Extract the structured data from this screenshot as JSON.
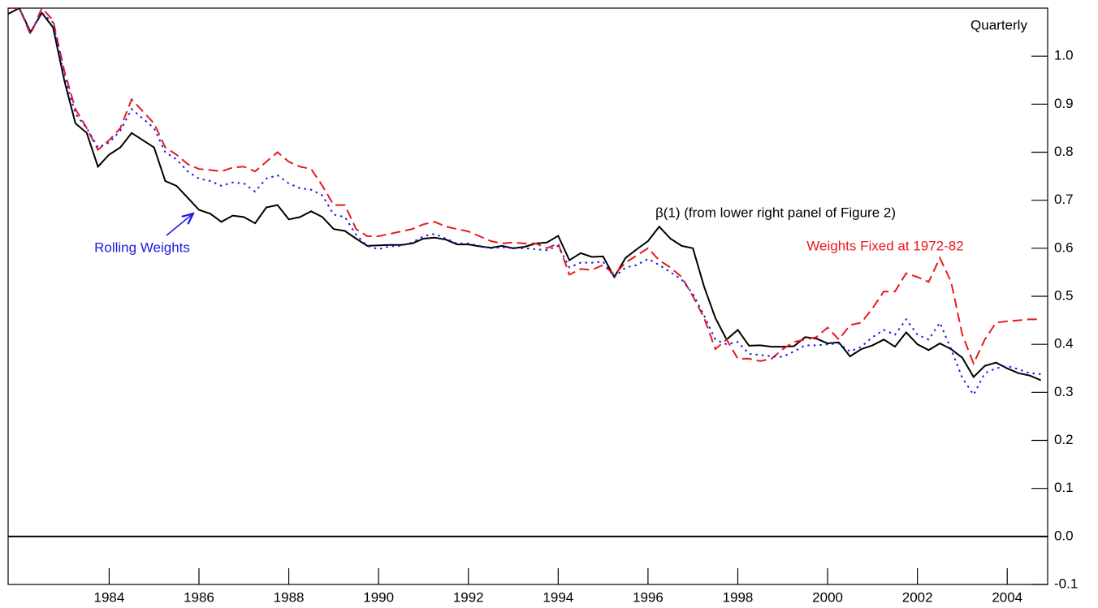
{
  "chart_data": {
    "type": "line",
    "annotations": {
      "frequency": "Quarterly"
    },
    "x": [
      1981.75,
      1982,
      1982.25,
      1982.5,
      1982.75,
      1983,
      1983.25,
      1983.5,
      1983.75,
      1984,
      1984.25,
      1984.5,
      1984.75,
      1985,
      1985.25,
      1985.5,
      1985.75,
      1986,
      1986.25,
      1986.5,
      1986.75,
      1987,
      1987.25,
      1987.5,
      1987.75,
      1988,
      1988.25,
      1988.5,
      1988.75,
      1989,
      1989.25,
      1989.5,
      1989.75,
      1990,
      1990.25,
      1990.5,
      1990.75,
      1991,
      1991.25,
      1991.5,
      1991.75,
      1992,
      1992.25,
      1992.5,
      1992.75,
      1993,
      1993.25,
      1993.5,
      1993.75,
      1994,
      1994.25,
      1994.5,
      1994.75,
      1995,
      1995.25,
      1995.5,
      1995.75,
      1996,
      1996.25,
      1996.5,
      1996.75,
      1997,
      1997.25,
      1997.5,
      1997.75,
      1998,
      1998.25,
      1998.5,
      1998.75,
      1999,
      1999.25,
      1999.5,
      1999.75,
      2000,
      2000.25,
      2000.5,
      2000.75,
      2001,
      2001.25,
      2001.5,
      2001.75,
      2002,
      2002.25,
      2002.5,
      2002.75,
      2003,
      2003.25,
      2003.5,
      2003.75,
      2004,
      2004.25,
      2004.5,
      2004.75
    ],
    "series": [
      {
        "name": "β(1) (from lower right panel of Figure 2)",
        "color": "#000000",
        "dash": "solid",
        "values": [
          1.088,
          1.1,
          1.05,
          1.09,
          1.06,
          0.95,
          0.86,
          0.84,
          0.77,
          0.795,
          0.81,
          0.84,
          0.825,
          0.81,
          0.74,
          0.73,
          0.705,
          0.68,
          0.672,
          0.655,
          0.668,
          0.665,
          0.652,
          0.685,
          0.69,
          0.66,
          0.665,
          0.677,
          0.665,
          0.64,
          0.636,
          0.62,
          0.605,
          0.606,
          0.607,
          0.607,
          0.61,
          0.62,
          0.622,
          0.618,
          0.608,
          0.608,
          0.604,
          0.601,
          0.605,
          0.6,
          0.603,
          0.61,
          0.612,
          0.626,
          0.575,
          0.59,
          0.582,
          0.583,
          0.54,
          0.58,
          0.598,
          0.615,
          0.645,
          0.62,
          0.605,
          0.6,
          0.52,
          0.455,
          0.41,
          0.43,
          0.397,
          0.398,
          0.395,
          0.395,
          0.396,
          0.415,
          0.412,
          0.402,
          0.404,
          0.375,
          0.39,
          0.398,
          0.41,
          0.395,
          0.425,
          0.4,
          0.388,
          0.402,
          0.39,
          0.372,
          0.332,
          0.355,
          0.362,
          0.35,
          0.34,
          0.335,
          0.325
        ]
      },
      {
        "name": "Weights Fixed at 1972-82",
        "color": "#e8191c",
        "dash": "dashed",
        "values": [
          1.1,
          1.1,
          1.045,
          1.1,
          1.075,
          0.97,
          0.89,
          0.85,
          0.805,
          0.825,
          0.85,
          0.91,
          0.885,
          0.86,
          0.81,
          0.795,
          0.775,
          0.765,
          0.763,
          0.76,
          0.768,
          0.77,
          0.76,
          0.78,
          0.8,
          0.78,
          0.77,
          0.765,
          0.73,
          0.69,
          0.69,
          0.64,
          0.625,
          0.625,
          0.63,
          0.635,
          0.64,
          0.65,
          0.655,
          0.645,
          0.64,
          0.635,
          0.625,
          0.615,
          0.61,
          0.612,
          0.61,
          0.61,
          0.6,
          0.61,
          0.545,
          0.557,
          0.555,
          0.565,
          0.545,
          0.57,
          0.585,
          0.6,
          0.575,
          0.56,
          0.54,
          0.5,
          0.455,
          0.39,
          0.41,
          0.37,
          0.37,
          0.365,
          0.37,
          0.39,
          0.405,
          0.41,
          0.415,
          0.435,
          0.41,
          0.44,
          0.445,
          0.475,
          0.51,
          0.51,
          0.548,
          0.54,
          0.53,
          0.58,
          0.53,
          0.42,
          0.36,
          0.41,
          0.445,
          0.448,
          0.45,
          0.452,
          0.452
        ]
      },
      {
        "name": "Rolling Weights",
        "color": "#1a1ae0",
        "dash": "dotted",
        "values": [
          1.1,
          1.1,
          1.05,
          1.09,
          1.07,
          0.96,
          0.88,
          0.85,
          0.81,
          0.82,
          0.845,
          0.89,
          0.87,
          0.85,
          0.8,
          0.785,
          0.76,
          0.745,
          0.74,
          0.73,
          0.737,
          0.735,
          0.718,
          0.745,
          0.752,
          0.735,
          0.725,
          0.722,
          0.71,
          0.67,
          0.665,
          0.628,
          0.605,
          0.598,
          0.604,
          0.605,
          0.612,
          0.625,
          0.63,
          0.62,
          0.61,
          0.61,
          0.605,
          0.6,
          0.602,
          0.6,
          0.6,
          0.598,
          0.596,
          0.605,
          0.56,
          0.57,
          0.57,
          0.572,
          0.54,
          0.56,
          0.565,
          0.578,
          0.565,
          0.55,
          0.535,
          0.505,
          0.46,
          0.41,
          0.4,
          0.405,
          0.38,
          0.378,
          0.375,
          0.374,
          0.385,
          0.398,
          0.398,
          0.4,
          0.402,
          0.385,
          0.395,
          0.415,
          0.43,
          0.42,
          0.452,
          0.42,
          0.41,
          0.445,
          0.39,
          0.33,
          0.295,
          0.34,
          0.35,
          0.355,
          0.348,
          0.34,
          0.338
        ]
      }
    ],
    "xlim": [
      1981.75,
      2004.9
    ],
    "xticks": [
      1984,
      1986,
      1988,
      1990,
      1992,
      1994,
      1996,
      1998,
      2000,
      2002,
      2004
    ],
    "ylim": [
      -0.1,
      1.1
    ],
    "yticks": [
      -0.1,
      {
        "value": 0,
        "label": "0.0"
      },
      0.1,
      0.2,
      0.3,
      0.4,
      0.5,
      0.6,
      0.7,
      0.8,
      0.9,
      {
        "value": 1,
        "label": "1.0"
      }
    ],
    "zero_line": true
  }
}
